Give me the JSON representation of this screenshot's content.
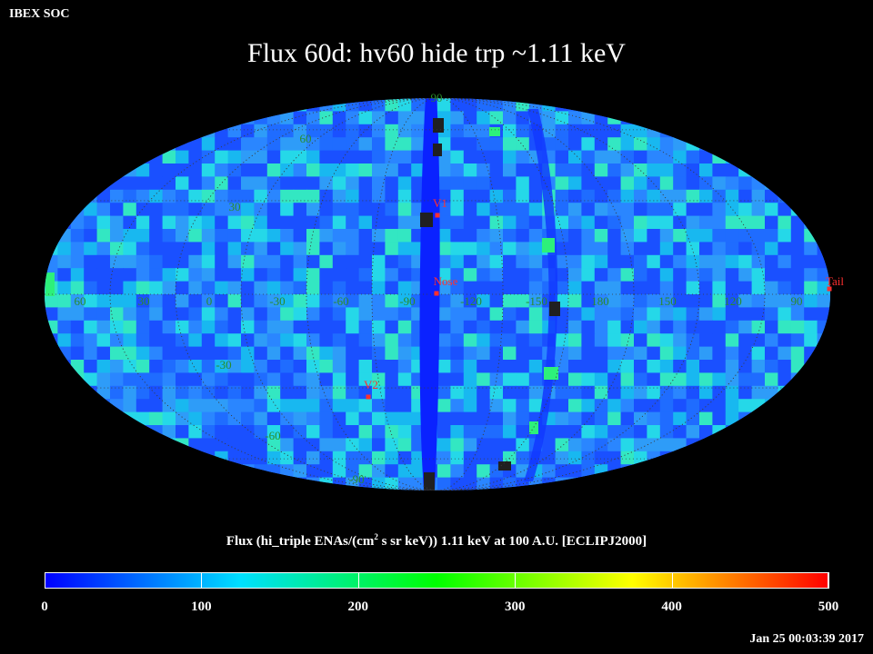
{
  "org_label": "IBEX SOC",
  "title": "Flux   60d: hv60 hide trp ~1.11 keV",
  "map": {
    "projection": "Mollweide (Hammer-Aitoff)",
    "frame": "ECLIPJ2000",
    "longitude_labels": [
      "60",
      "30",
      "0",
      "-30",
      "-60",
      "-90",
      "-120",
      "-150",
      "180",
      "150",
      "120",
      "90"
    ],
    "latitude_labels": [
      "90",
      "60",
      "30",
      "-30",
      "-60",
      "-90"
    ],
    "markers": [
      {
        "label": "V1",
        "color": "#ff3030"
      },
      {
        "label": "Nose",
        "color": "#ff3030"
      },
      {
        "label": "V2",
        "color": "#ff3030"
      },
      {
        "label": "Tail",
        "color": "#ff3030"
      }
    ],
    "label_color": "#2a8c2a"
  },
  "colorbar": {
    "title_prefix": "Flux (hi_triple ENAs/(cm",
    "title_sup": "2",
    "title_suffix": " s sr keV))  1.11 keV at 100 A.U. [ECLIPJ2000]",
    "min": 0,
    "max": 500,
    "ticks": [
      "0",
      "100",
      "200",
      "300",
      "400",
      "500"
    ],
    "colors": [
      "#0000ff",
      "#00e0ff",
      "#00ff00",
      "#ffff00",
      "#ff0000"
    ]
  },
  "timestamp": "Jan 25 00:03:39 2017"
}
